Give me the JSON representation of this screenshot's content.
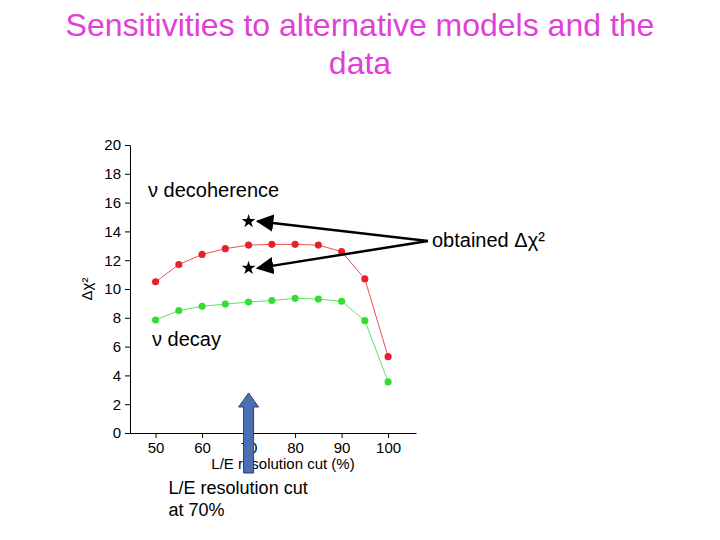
{
  "chart_data": {
    "type": "line",
    "title": "Sensitivities to alternative models and the data",
    "x_label": "L/E resolution cut (%)",
    "y_label": "Δχ²",
    "x": [
      50,
      55,
      60,
      65,
      70,
      75,
      80,
      85,
      90,
      95,
      100
    ],
    "xlim": [
      44.5,
      106
    ],
    "xticks": [
      50,
      60,
      70,
      80,
      90,
      100
    ],
    "ylim": [
      0,
      20
    ],
    "yticks": [
      0,
      2,
      4,
      6,
      8,
      10,
      12,
      14,
      16,
      18,
      20
    ],
    "marker": "circle",
    "series": [
      {
        "name": "ν decoherence",
        "color": "#e8202a",
        "values": [
          10.5,
          11.7,
          12.4,
          12.8,
          13.05,
          13.1,
          13.1,
          13.05,
          12.6,
          10.7,
          5.3
        ]
      },
      {
        "name": "ν decay",
        "color": "#33dd33",
        "values": [
          7.85,
          8.5,
          8.8,
          8.95,
          9.1,
          9.2,
          9.35,
          9.3,
          9.15,
          7.8,
          3.55
        ]
      },
      {
        "name": "obtained Δχ²",
        "type": "scatter",
        "marker": "star",
        "color": "#000000",
        "x": [
          70,
          70
        ],
        "values": [
          14.7,
          11.45
        ]
      }
    ],
    "annotations": [
      {
        "text": "L/E resolution cut at 70%",
        "x": 70
      }
    ]
  }
}
